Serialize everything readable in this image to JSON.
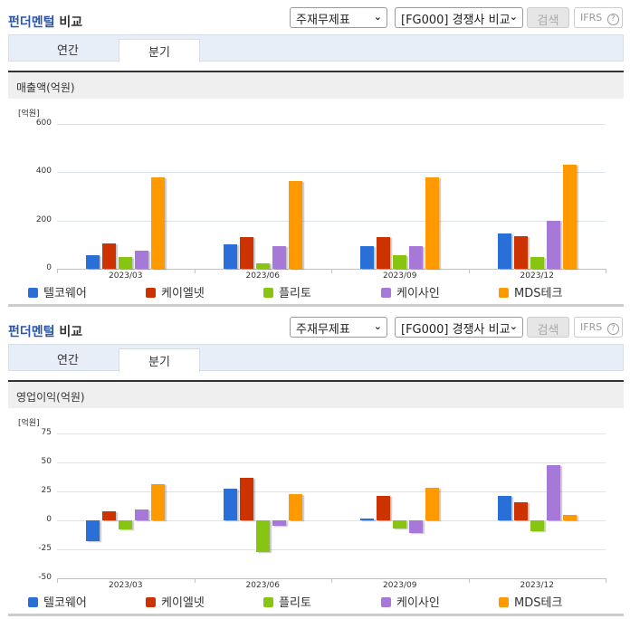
{
  "colors": {
    "텔코웨어": "#2a6ed8",
    "케이엘넷": "#cc3300",
    "플리토": "#88c412",
    "케이사인": "#a678d8",
    "MDS테크": "#ff9900"
  },
  "panels": [
    {
      "title_part1": "펀더멘털",
      "title_part2": "비교",
      "select_statement": "주재무제표",
      "select_group": "[FG000] 경쟁사 비교",
      "search_label": "검색",
      "ifrs_label": "IFRS",
      "help_icon": "?",
      "tabs": [
        {
          "label": "연간",
          "active": false
        },
        {
          "label": "분기",
          "active": true
        }
      ],
      "section_title": "매출액(억원)"
    },
    {
      "title_part1": "펀더멘털",
      "title_part2": "비교",
      "select_statement": "주재무제표",
      "select_group": "[FG000] 경쟁사 비교",
      "search_label": "검색",
      "ifrs_label": "IFRS",
      "help_icon": "?",
      "tabs": [
        {
          "label": "연간",
          "active": false
        },
        {
          "label": "분기",
          "active": true
        }
      ],
      "section_title": "영업이익(억원)"
    }
  ],
  "chart_data": [
    {
      "type": "bar",
      "title": "매출액(억원)",
      "ylabel": "[억원]",
      "xlabel": "",
      "ylim": [
        0,
        600
      ],
      "yticks": [
        0,
        200,
        400,
        600
      ],
      "grid": true,
      "legend_position": "bottom",
      "categories": [
        "2023/03",
        "2023/06",
        "2023/09",
        "2023/12"
      ],
      "series": [
        {
          "name": "텔코웨어",
          "values": [
            55,
            103,
            95,
            148
          ]
        },
        {
          "name": "케이엘넷",
          "values": [
            105,
            133,
            130,
            135
          ]
        },
        {
          "name": "플리토",
          "values": [
            48,
            23,
            55,
            48
          ]
        },
        {
          "name": "케이사인",
          "values": [
            75,
            95,
            92,
            200
          ]
        },
        {
          "name": "MDS테크",
          "values": [
            378,
            362,
            378,
            432
          ]
        }
      ]
    },
    {
      "type": "bar",
      "title": "영업이익(억원)",
      "ylabel": "[억원]",
      "xlabel": "",
      "ylim": [
        -50,
        75
      ],
      "yticks": [
        -50,
        -25,
        0,
        25,
        50,
        75
      ],
      "grid": true,
      "legend_position": "bottom",
      "categories": [
        "2023/03",
        "2023/06",
        "2023/09",
        "2023/12"
      ],
      "series": [
        {
          "name": "텔코웨어",
          "values": [
            -18,
            27,
            1.5,
            21
          ]
        },
        {
          "name": "케이엘넷",
          "values": [
            8,
            37,
            21,
            16
          ]
        },
        {
          "name": "플리토",
          "values": [
            -8,
            -27,
            -7,
            -9
          ]
        },
        {
          "name": "케이사인",
          "values": [
            9,
            -5,
            -11,
            48
          ]
        },
        {
          "name": "MDS테크",
          "values": [
            31,
            23,
            28,
            5
          ]
        }
      ]
    }
  ]
}
